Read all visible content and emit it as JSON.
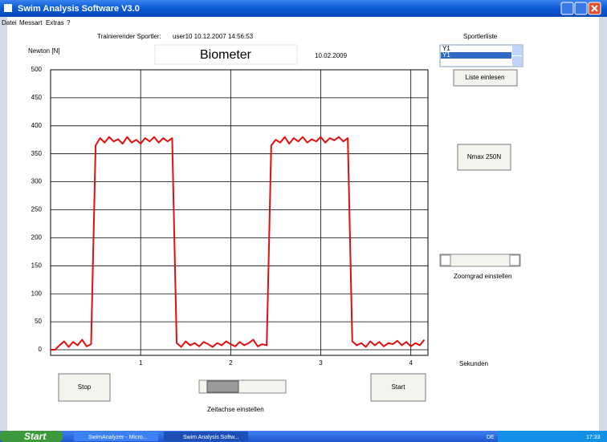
{
  "window": {
    "title": "Swim Analysis Software V3.0",
    "menu": [
      "Datei",
      "Messart",
      "Extras",
      "?"
    ]
  },
  "header": {
    "athlete_label": "Trainierender Sportler:",
    "athlete": "user10 10.12.2007 14:56:53",
    "date": "10.02.2009"
  },
  "sidebar": {
    "list_title": "Sportlerliste",
    "list_items": [
      "Y1",
      "Y1"
    ],
    "load_button": "Liste einlesen",
    "nmax_button": "Nmax 250N",
    "zoom_label": "Zoomgrad einstellen"
  },
  "controls": {
    "stop": "Stop",
    "start": "Start",
    "time_axis_label": "Zeitachse einstellen"
  },
  "taskbar": {
    "start": "Start",
    "items": [
      "SwimAnalyzer - Micro...",
      "Swim Analysis Softw..."
    ],
    "language": "DE",
    "clock": "17:33"
  },
  "chart_data": {
    "type": "line",
    "title": "Biometer",
    "y_label": "Newton [N]",
    "x_label": "Sekunden",
    "x": [
      0,
      0.05,
      0.1,
      0.15,
      0.2,
      0.25,
      0.3,
      0.35,
      0.4,
      0.45,
      0.5,
      0.55,
      0.6,
      0.65,
      0.7,
      0.75,
      0.8,
      0.85,
      0.9,
      0.95,
      1.0,
      1.05,
      1.1,
      1.15,
      1.2,
      1.25,
      1.3,
      1.35,
      1.4,
      1.45,
      1.5,
      1.55,
      1.6,
      1.65,
      1.7,
      1.75,
      1.8,
      1.85,
      1.9,
      1.95,
      2.0,
      2.05,
      2.1,
      2.15,
      2.2,
      2.25,
      2.3,
      2.35,
      2.4,
      2.45,
      2.5,
      2.55,
      2.6,
      2.65,
      2.7,
      2.75,
      2.8,
      2.85,
      2.9,
      2.95,
      3.0,
      3.05,
      3.1,
      3.15,
      3.2,
      3.25,
      3.3,
      3.35,
      3.4,
      3.45,
      3.5,
      3.55,
      3.6,
      3.65,
      3.7,
      3.75,
      3.8,
      3.85,
      3.9,
      3.95,
      4.0,
      4.05,
      4.1,
      4.15
    ],
    "series": [
      {
        "color": "#e01010",
        "values": [
          0,
          0,
          8,
          15,
          5,
          14,
          8,
          18,
          6,
          10,
          365,
          378,
          370,
          380,
          372,
          376,
          368,
          380,
          370,
          375,
          368,
          378,
          372,
          380,
          370,
          378,
          372,
          378,
          12,
          5,
          15,
          8,
          12,
          6,
          14,
          10,
          5,
          12,
          8,
          15,
          10,
          6,
          14,
          8,
          12,
          18,
          6,
          10,
          8,
          365,
          375,
          370,
          380,
          368,
          378,
          372,
          380,
          370,
          376,
          372,
          380,
          370,
          378,
          374,
          380,
          372,
          378,
          15,
          8,
          12,
          5,
          15,
          8,
          14,
          6,
          12,
          10,
          16,
          8,
          14,
          6,
          12,
          8,
          18
        ]
      }
    ],
    "xlim": [
      0,
      4.19
    ],
    "ylim": [
      -10,
      500
    ],
    "xticks": [
      1,
      2,
      3,
      4
    ],
    "yticks": [
      0,
      50,
      100,
      150,
      200,
      250,
      300,
      350,
      400,
      450,
      500
    ],
    "grid": true
  }
}
